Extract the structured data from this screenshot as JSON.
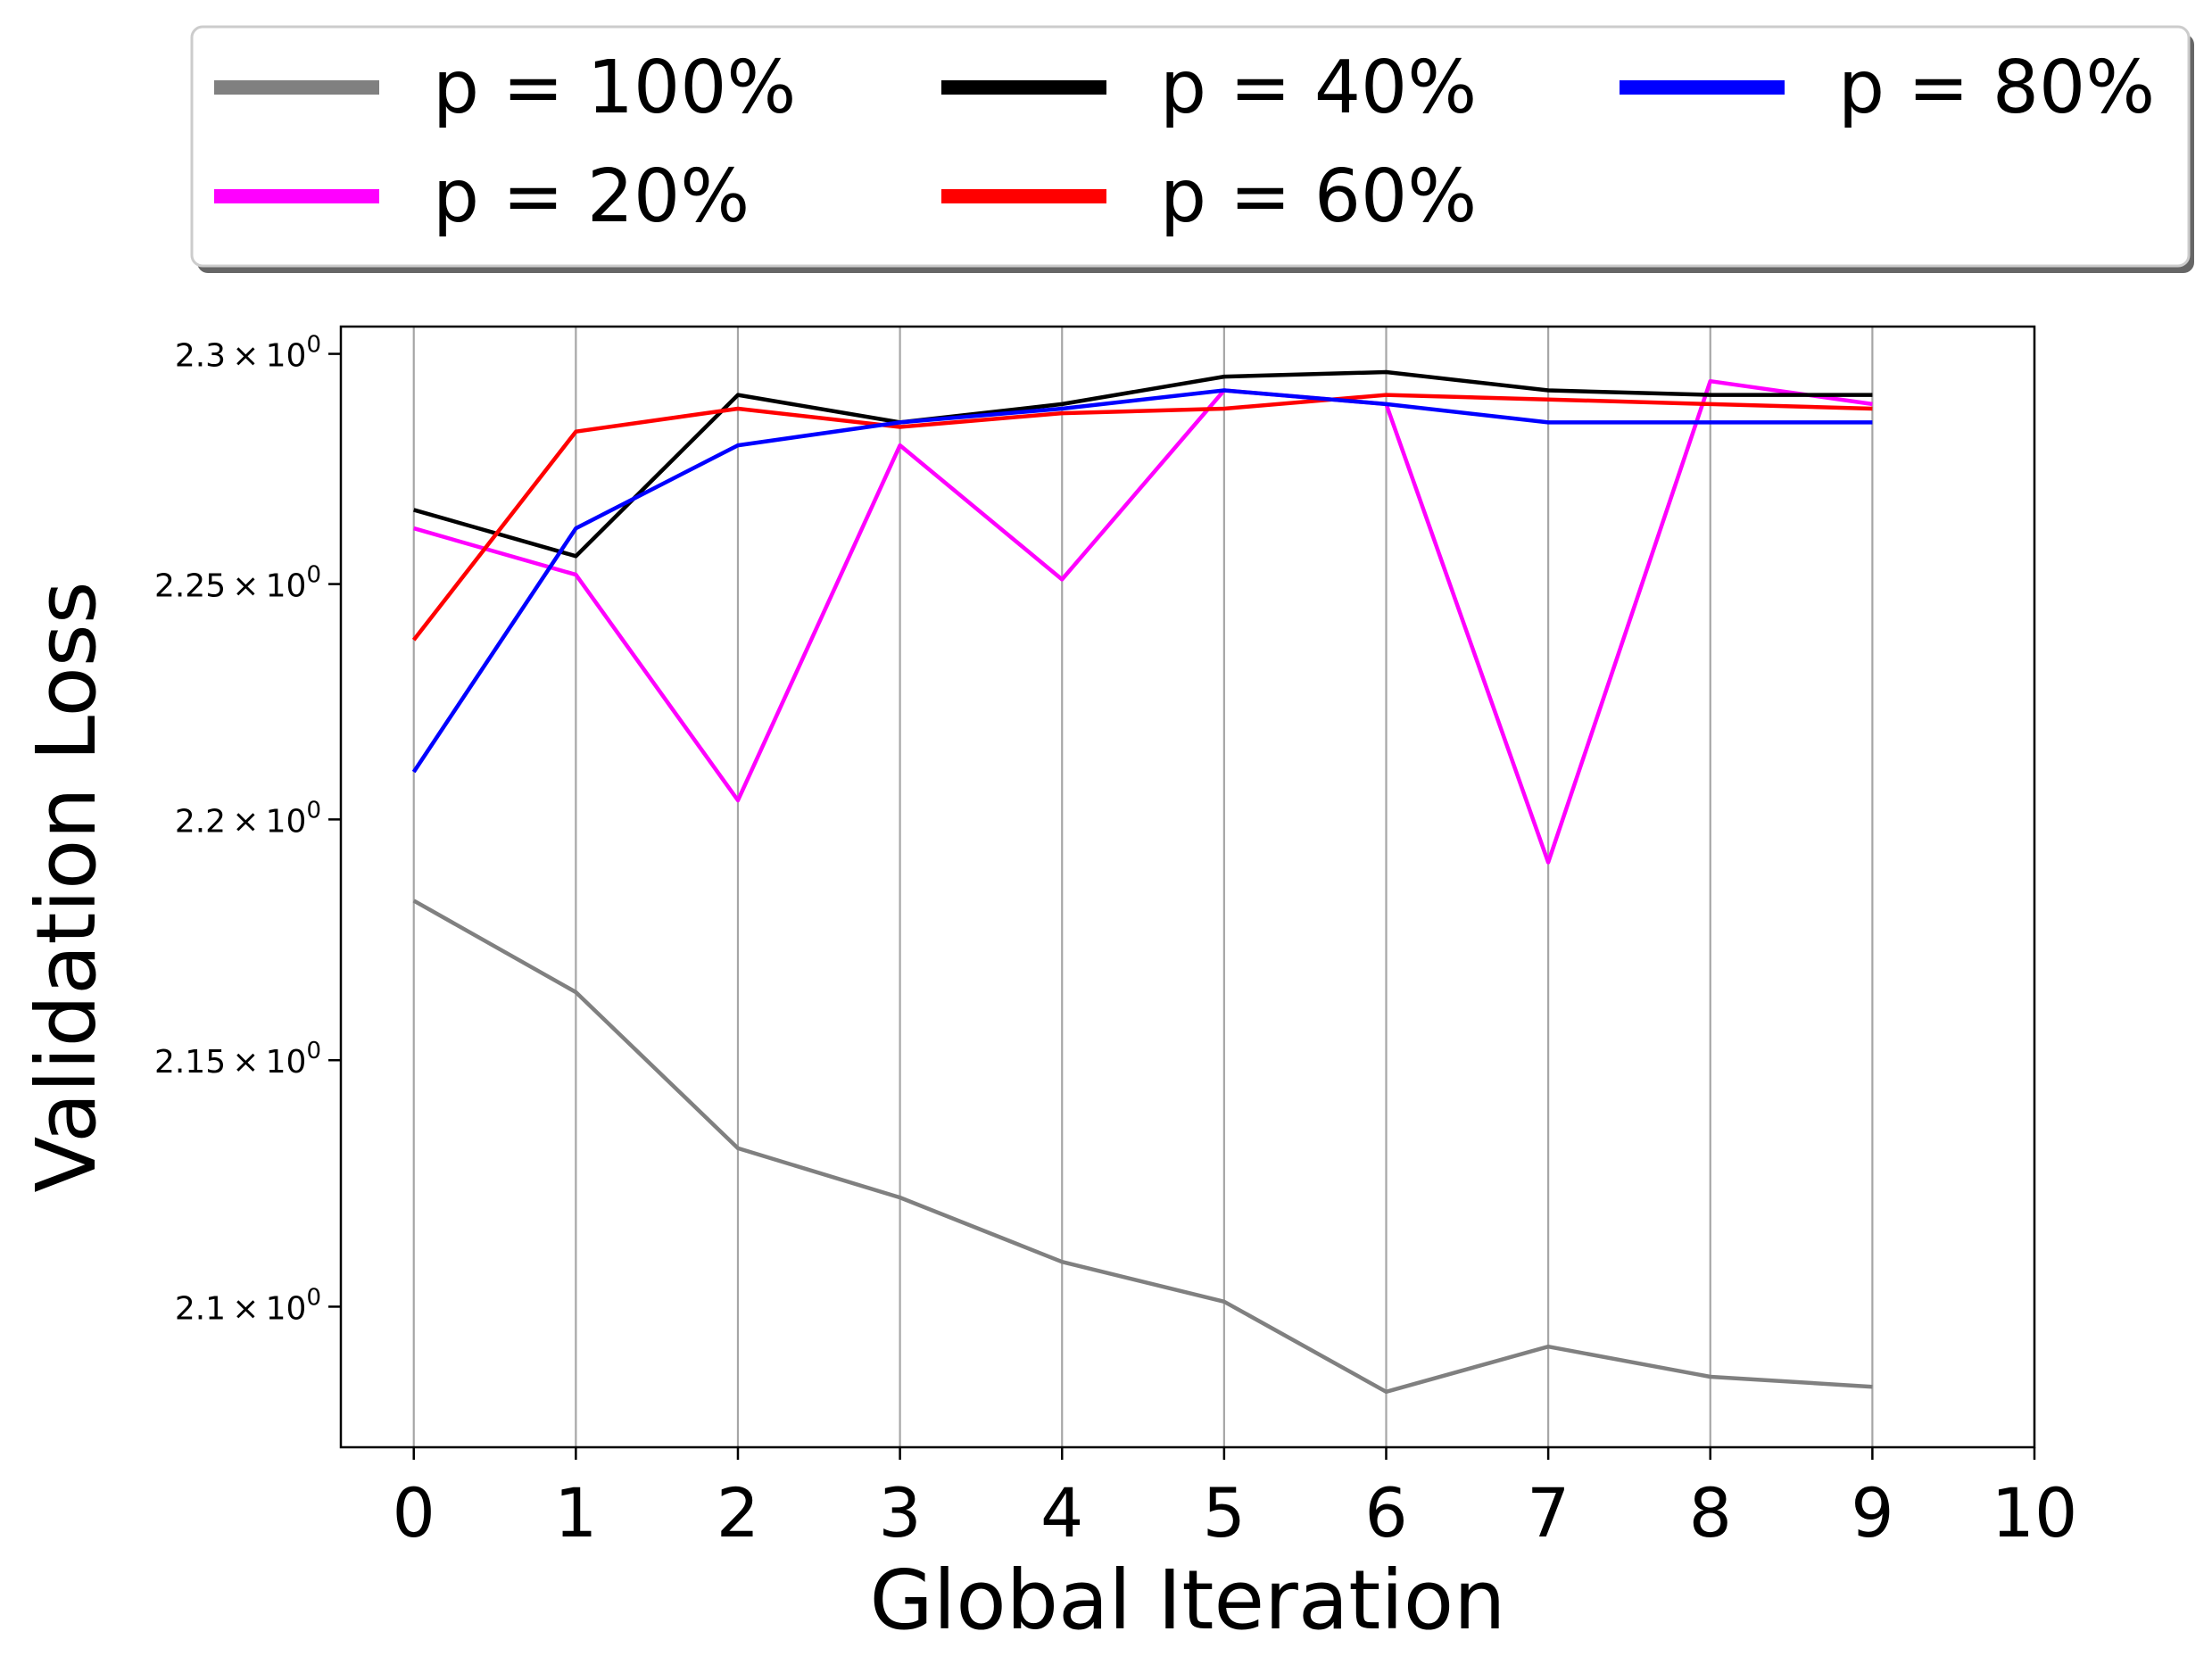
{
  "chart_data": {
    "type": "line",
    "title": "",
    "xlabel": "Global Iteration",
    "ylabel": "Validation Loss",
    "x": [
      0,
      1,
      2,
      3,
      4,
      5,
      6,
      7,
      8,
      9
    ],
    "xlim": [
      -0.45,
      10
    ],
    "x_ticks": [
      "0",
      "1",
      "2",
      "3",
      "4",
      "5",
      "6",
      "7",
      "8",
      "9",
      "10"
    ],
    "y_scale": "log",
    "ylim": [
      2.072,
      2.306
    ],
    "y_ticks": [
      {
        "value": 2.3,
        "mantissa": "2.3",
        "base": "10",
        "exp": "0"
      },
      {
        "value": 2.25,
        "mantissa": "2.25",
        "base": "10",
        "exp": "0"
      },
      {
        "value": 2.2,
        "mantissa": "2.2",
        "base": "10",
        "exp": "0"
      },
      {
        "value": 2.15,
        "mantissa": "2.15",
        "base": "10",
        "exp": "0"
      },
      {
        "value": 2.1,
        "mantissa": "2.1",
        "base": "10",
        "exp": "0"
      }
    ],
    "grid": "vertical",
    "legend_position": "top",
    "series": [
      {
        "name": "p = 100%",
        "color": "#808080",
        "values": [
          2.183,
          2.164,
          2.132,
          2.122,
          2.109,
          2.101,
          2.083,
          2.092,
          2.086,
          2.084
        ]
      },
      {
        "name": "p = 20%",
        "color": "#ff00ff",
        "values": [
          2.262,
          2.252,
          2.204,
          2.28,
          2.251,
          2.292,
          2.289,
          2.191,
          2.294,
          2.289
        ]
      },
      {
        "name": "p = 40%",
        "color": "#000000",
        "values": [
          2.266,
          2.256,
          2.291,
          2.285,
          2.289,
          2.295,
          2.296,
          2.292,
          2.291,
          2.291
        ]
      },
      {
        "name": "p = 60%",
        "color": "#ff0000",
        "values": [
          2.238,
          2.283,
          2.288,
          2.284,
          2.287,
          2.288,
          2.291,
          2.29,
          2.289,
          2.288
        ]
      },
      {
        "name": "p = 80%",
        "color": "#0000ff",
        "values": [
          2.21,
          2.262,
          2.28,
          2.285,
          2.288,
          2.292,
          2.289,
          2.285,
          2.285,
          2.285
        ]
      }
    ]
  }
}
